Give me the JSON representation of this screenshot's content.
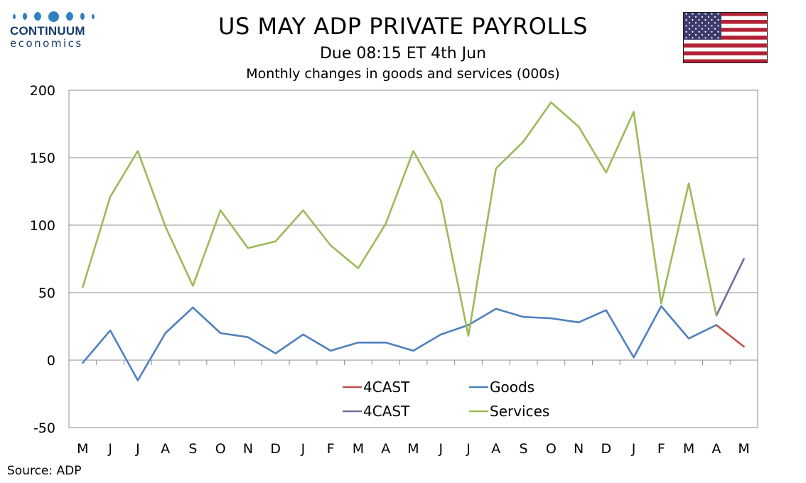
{
  "header": {
    "brand_name": "CONTINUUM",
    "brand_sub": "economics",
    "title": "US MAY ADP PRIVATE PAYROLLS",
    "subtitle": "Due 08:15 ET 4th Jun",
    "chart_subtitle": "Monthly changes in goods and services (000s)"
  },
  "footer": {
    "source": "Source: ADP"
  },
  "flag_icon": "us-flag-icon",
  "chart_data": {
    "type": "line",
    "categories": [
      "M",
      "J",
      "J",
      "A",
      "S",
      "O",
      "N",
      "D",
      "J",
      "F",
      "M",
      "A",
      "M",
      "J",
      "J",
      "A",
      "S",
      "O",
      "N",
      "D",
      "J",
      "F",
      "M",
      "A",
      "M"
    ],
    "ylim": [
      -50,
      200
    ],
    "yticks": [
      -50,
      0,
      50,
      100,
      150,
      200
    ],
    "ytick_labels": [
      "-50",
      "0",
      "50",
      "100",
      "150",
      "200"
    ],
    "grid": true,
    "legend_placement": "bottom-center inside plot",
    "series": [
      {
        "name": "4CAST",
        "color": "#c0504d",
        "values": [
          null,
          null,
          null,
          null,
          null,
          null,
          null,
          null,
          null,
          null,
          null,
          null,
          null,
          null,
          null,
          null,
          null,
          null,
          null,
          null,
          null,
          null,
          null,
          26,
          10
        ]
      },
      {
        "name": "Goods",
        "color": "#4f81bd",
        "values": [
          -2,
          22,
          -15,
          20,
          39,
          20,
          17,
          5,
          19,
          7,
          13,
          13,
          7,
          19,
          26,
          38,
          32,
          31,
          28,
          37,
          2,
          40,
          16,
          26,
          null
        ]
      },
      {
        "name": "4CAST",
        "color": "#8064a2",
        "values": [
          null,
          null,
          null,
          null,
          null,
          null,
          null,
          null,
          null,
          null,
          null,
          null,
          null,
          null,
          null,
          null,
          null,
          null,
          null,
          null,
          null,
          null,
          null,
          33,
          75
        ]
      },
      {
        "name": "Services",
        "color": "#9bbb59",
        "values": [
          54,
          121,
          155,
          99,
          55,
          111,
          83,
          88,
          111,
          85,
          68,
          101,
          155,
          118,
          18,
          142,
          162,
          191,
          173,
          139,
          184,
          42,
          131,
          33,
          null
        ]
      }
    ]
  }
}
